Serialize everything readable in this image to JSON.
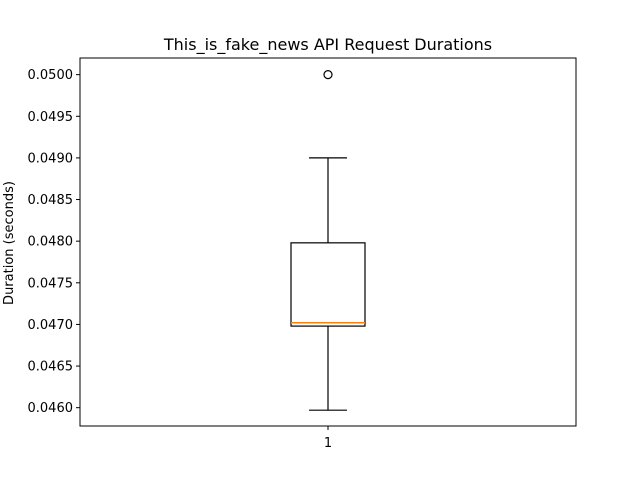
{
  "chart_data": {
    "type": "box",
    "title": "This_is_fake_news API Request Durations",
    "xlabel": "",
    "ylabel": "Duration (seconds)",
    "ylim": [
      0.04578,
      0.0502
    ],
    "yticks": [
      0.046,
      0.0465,
      0.047,
      0.0475,
      0.048,
      0.0485,
      0.049,
      0.0495,
      0.05
    ],
    "ytick_labels": [
      "0.0460",
      "0.0465",
      "0.0470",
      "0.0475",
      "0.0480",
      "0.0485",
      "0.0490",
      "0.0495",
      "0.0500"
    ],
    "categories": [
      "1"
    ],
    "boxes": [
      {
        "label": "1",
        "whisker_low": 0.04597,
        "q1": 0.04698,
        "median": 0.04702,
        "q3": 0.04798,
        "whisker_high": 0.049,
        "outliers": [
          0.05
        ]
      }
    ],
    "grid": false,
    "colors": {
      "median": "#ff7f0e",
      "box": "#000000",
      "axes": "#000000"
    }
  }
}
